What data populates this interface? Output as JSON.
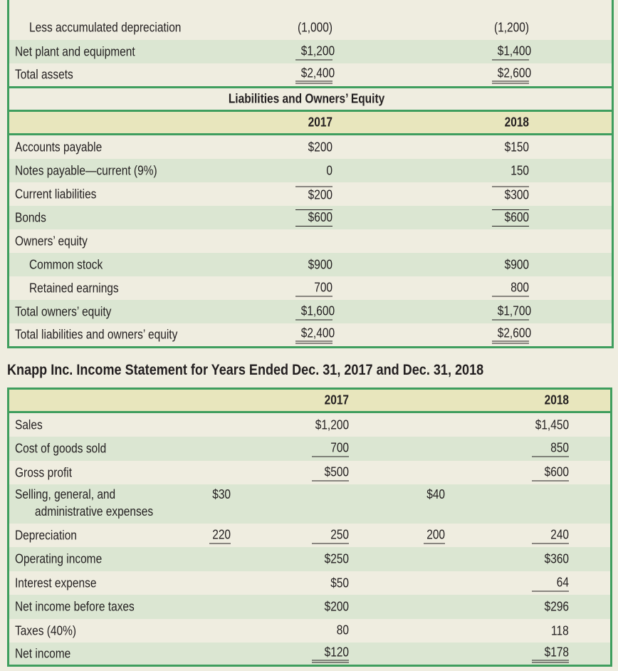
{
  "balance_sheet": {
    "rows_top": [
      {
        "label": "Less accumulated depreciation",
        "v2017": "(1,000)",
        "v2018": "(1,200)"
      },
      {
        "label": "Net plant and equipment",
        "v2017": "$1,200",
        "v2018": "$1,400"
      },
      {
        "label": "Total assets",
        "v2017": "$2,400",
        "v2018": "$2,600"
      }
    ],
    "section_title": "Liabilities and Owners’ Equity",
    "year_2017": "2017",
    "year_2018": "2018",
    "rows": [
      {
        "label": "Accounts payable",
        "v2017": "$200",
        "v2018": "$150"
      },
      {
        "label": "Notes payable—current (9%)",
        "v2017": "0",
        "v2018": "150"
      },
      {
        "label": "Current liabilities",
        "v2017": "$200",
        "v2018": "$300"
      },
      {
        "label": "Bonds",
        "v2017": "$600",
        "v2018": "$600"
      },
      {
        "label": "Owners’ equity",
        "v2017": "",
        "v2018": ""
      },
      {
        "label": "Common stock",
        "v2017": "$900",
        "v2018": "$900"
      },
      {
        "label": "Retained earnings",
        "v2017": "700",
        "v2018": "800"
      },
      {
        "label": "Total owners’ equity",
        "v2017": "$1,600",
        "v2018": "$1,700"
      },
      {
        "label": "Total liabilities and owners’ equity",
        "v2017": "$2,400",
        "v2018": "$2,600"
      }
    ]
  },
  "income_statement": {
    "title": "Knapp Inc. Income Statement for Years Ended Dec. 31, 2017 and Dec. 31, 2018",
    "year_2017": "2017",
    "year_2018": "2018",
    "rows": [
      {
        "label": "Sales",
        "a2017": "",
        "v2017": "$1,200",
        "a2018": "",
        "v2018": "$1,450"
      },
      {
        "label": "Cost of goods sold",
        "a2017": "",
        "v2017": "700",
        "a2018": "",
        "v2018": "850"
      },
      {
        "label": "Gross profit",
        "a2017": "",
        "v2017": "$500",
        "a2018": "",
        "v2018": "$600"
      },
      {
        "label": "Selling, general, and",
        "label2": "administrative expenses",
        "a2017": "$30",
        "v2017": "",
        "a2018": "$40",
        "v2018": ""
      },
      {
        "label": "Depreciation",
        "a2017": "220",
        "v2017": "250",
        "a2018": "200",
        "v2018": "240"
      },
      {
        "label": "Operating income",
        "a2017": "",
        "v2017": "$250",
        "a2018": "",
        "v2018": "$360"
      },
      {
        "label": "Interest expense",
        "a2017": "",
        "v2017": "$50",
        "a2018": "",
        "v2018": "64"
      },
      {
        "label": "Net income before taxes",
        "a2017": "",
        "v2017": "$200",
        "a2018": "",
        "v2018": "$296"
      },
      {
        "label": "Taxes (40%)",
        "a2017": "",
        "v2017": "80",
        "a2018": "",
        "v2018": "118"
      },
      {
        "label": "Net income",
        "a2017": "",
        "v2017": "$120",
        "a2018": "",
        "v2018": "$178"
      }
    ]
  }
}
